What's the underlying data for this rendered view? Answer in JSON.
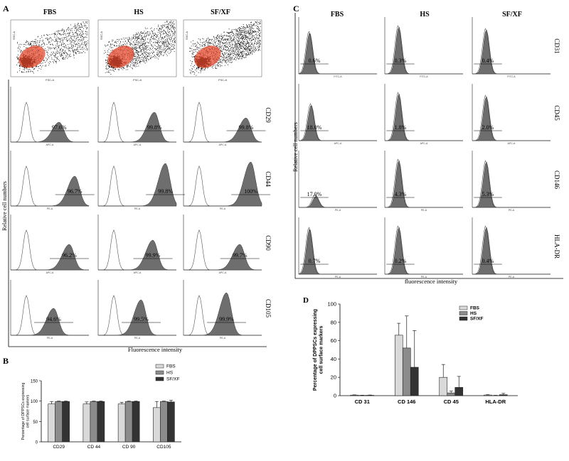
{
  "panel_labels": [
    "A",
    "B",
    "C",
    "D"
  ],
  "conditions": [
    "FBS",
    "HS",
    "SF/XF"
  ],
  "panel_a": {
    "scatter_y_label": "SSC-A",
    "scatter_x_label": "FSC-A",
    "y_axis_label": "Relative  cell  numbers",
    "x_axis_label": "Fluorescence intensity",
    "rows": [
      {
        "marker": "CD29",
        "channel": "APC-A",
        "values": [
          "97.6%",
          "99.8%",
          "99.8%"
        ]
      },
      {
        "marker": "CD44",
        "channel": "PE-A",
        "values": [
          "96.7%",
          "99.8%",
          "100%"
        ]
      },
      {
        "marker": "CD90",
        "channel": "APC-A",
        "values": [
          "96.2%",
          "99.9%",
          "99.7%"
        ]
      },
      {
        "marker": "CD105",
        "channel": "PE-A",
        "values": [
          "94.6%",
          "99.5%",
          "99.9%"
        ]
      }
    ]
  },
  "panel_c": {
    "y_axis_label": "Relative  cell  numbers",
    "x_axis_label": "fluorescence intensity",
    "rows": [
      {
        "marker": "CD31",
        "channel": "FITC-A",
        "values": [
          "0.6%",
          "0.3%",
          "0.4%"
        ]
      },
      {
        "marker": "CD45",
        "channel": "APC-A",
        "values": [
          "18.0%",
          "1.8%",
          "2.0%"
        ]
      },
      {
        "marker": "CD146",
        "channel": "PE-A",
        "values": [
          "17.0%",
          "4.3%",
          "5.3%"
        ]
      },
      {
        "marker": "HLA-DR",
        "channel": "PE-A",
        "values": [
          "0.7%",
          "0.2%",
          "0.4%"
        ]
      }
    ]
  },
  "chart_data": [
    {
      "type": "bar",
      "panel": "B",
      "categories": [
        "CD29",
        "CD 44",
        "CD 90",
        "CD105"
      ],
      "series": [
        {
          "name": "FBS",
          "color": "#d9d9d9",
          "values": [
            93,
            93,
            93,
            84
          ],
          "errors": [
            6,
            5,
            4,
            15
          ]
        },
        {
          "name": "HS",
          "color": "#8c8c8c",
          "values": [
            99,
            99,
            99,
            99
          ],
          "errors": [
            1,
            1,
            1,
            1
          ]
        },
        {
          "name": "SF/XF",
          "color": "#333333",
          "values": [
            99,
            99,
            99,
            98
          ],
          "errors": [
            1,
            1,
            1,
            4
          ]
        }
      ],
      "ylabel": "Percentage of DPPSCs expressing cell surface markers",
      "ylim": [
        0,
        150
      ],
      "yticks": [
        0,
        50,
        100,
        150
      ],
      "legend": "top-right"
    },
    {
      "type": "bar",
      "panel": "D",
      "categories": [
        "CD 31",
        "CD 146",
        "CD 45",
        "HLA-DR"
      ],
      "series": [
        {
          "name": "FBS",
          "color": "#d9d9d9",
          "values": [
            0.6,
            66,
            20,
            0.7
          ],
          "errors": [
            0.3,
            13,
            14,
            0.4
          ]
        },
        {
          "name": "HS",
          "color": "#8c8c8c",
          "values": [
            0.3,
            52,
            3,
            0.2
          ],
          "errors": [
            0.2,
            35,
            2,
            0.2
          ]
        },
        {
          "name": "SF/XF",
          "color": "#333333",
          "values": [
            0.4,
            31,
            9,
            1
          ],
          "errors": [
            0.3,
            40,
            12,
            1.5
          ]
        }
      ],
      "ylabel": "Percentage of DPPSCs expressing cell surface markers",
      "ylim": [
        0,
        100
      ],
      "yticks": [
        0,
        20,
        40,
        60,
        80,
        100
      ],
      "legend": "top-right"
    }
  ]
}
